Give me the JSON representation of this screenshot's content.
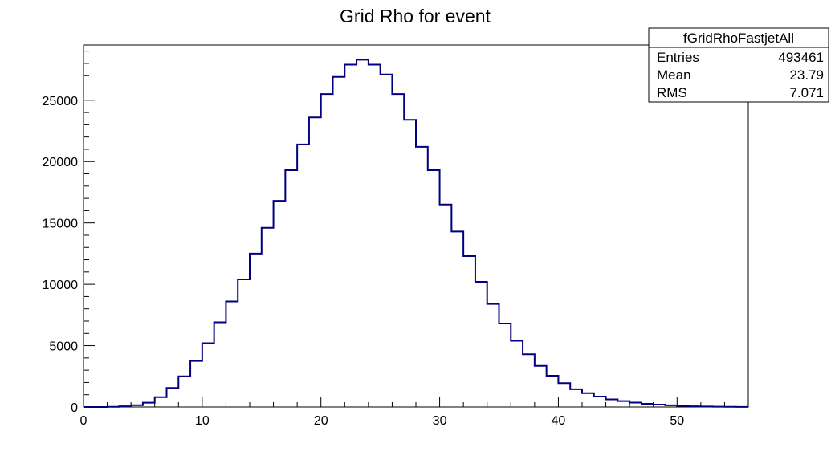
{
  "chart_data": {
    "type": "bar",
    "style": "step-histogram",
    "title": "Grid Rho for event",
    "xlabel": "",
    "ylabel": "",
    "xlim": [
      0,
      56
    ],
    "ylim": [
      0,
      29500
    ],
    "bin_width": 1,
    "x_ticks": [
      0,
      10,
      20,
      30,
      40,
      50
    ],
    "y_ticks": [
      0,
      5000,
      10000,
      15000,
      20000,
      25000
    ],
    "line_color": "#000080",
    "series": [
      {
        "values": [
          0,
          0,
          20,
          60,
          150,
          350,
          800,
          1550,
          2500,
          3750,
          5200,
          6900,
          8600,
          10400,
          12500,
          14600,
          16800,
          19300,
          21400,
          23600,
          25500,
          26900,
          27900,
          28300,
          27900,
          27100,
          25500,
          23400,
          21200,
          19300,
          16500,
          14300,
          12300,
          10200,
          8400,
          6800,
          5400,
          4300,
          3350,
          2550,
          1950,
          1450,
          1130,
          850,
          620,
          480,
          360,
          260,
          200,
          140,
          90,
          60,
          40,
          25,
          15,
          10
        ]
      }
    ],
    "stats_box": {
      "name": "fGridRhoFastjetAll",
      "rows": [
        {
          "label": "Entries",
          "value": "493461"
        },
        {
          "label": "Mean",
          "value": "23.79"
        },
        {
          "label": "RMS",
          "value": "7.071"
        }
      ]
    }
  }
}
